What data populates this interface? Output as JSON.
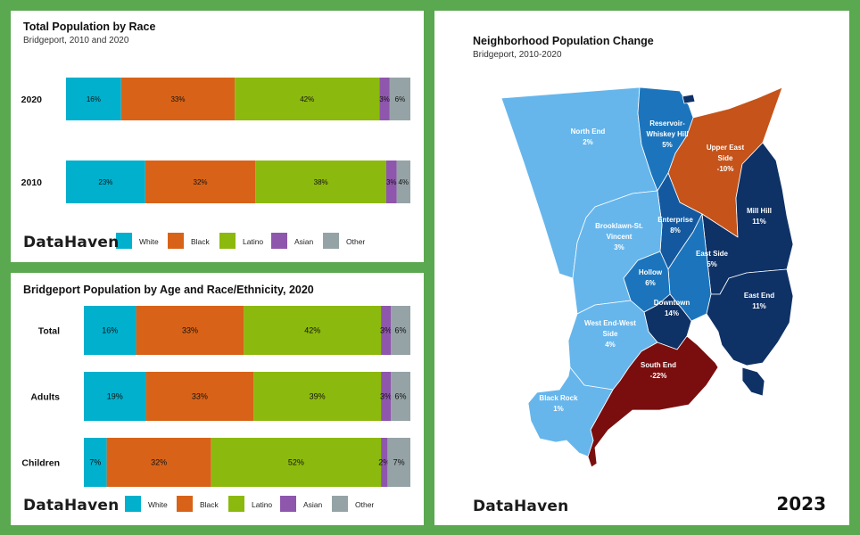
{
  "colors": {
    "background": "#5aa84f",
    "White": "#00b0cd",
    "Black": "#d86318",
    "Latino": "#8cb90e",
    "Asian": "#8e56ad",
    "Other": "#95a3a6"
  },
  "legend": [
    "White",
    "Black",
    "Latino",
    "Asian",
    "Other"
  ],
  "brand": "DataHaven",
  "year": "2023",
  "chart_data": [
    {
      "type": "bar",
      "stacked": "percent",
      "orientation": "horizontal",
      "title": "Total Population by Race",
      "subtitle": "Bridgeport, 2010 and 2020",
      "categories": [
        "2020",
        "2010"
      ],
      "series": [
        {
          "name": "White",
          "values": [
            16,
            23
          ],
          "labels": [
            "16%",
            "23%"
          ]
        },
        {
          "name": "Black",
          "values": [
            33,
            32
          ],
          "labels": [
            "33%",
            "32%"
          ]
        },
        {
          "name": "Latino",
          "values": [
            42,
            38
          ],
          "labels": [
            "42%",
            "38%"
          ]
        },
        {
          "name": "Asian",
          "values": [
            3,
            3
          ],
          "labels": [
            "3%",
            "3%"
          ]
        },
        {
          "name": "Other",
          "values": [
            6,
            4
          ],
          "labels": [
            "6%",
            "4%"
          ]
        }
      ],
      "legend_position": "bottom"
    },
    {
      "type": "bar",
      "stacked": "percent",
      "orientation": "horizontal",
      "title": "Bridgeport Population by Age and Race/Ethnicity, 2020",
      "categories": [
        "Total",
        "Adults",
        "Children"
      ],
      "series": [
        {
          "name": "White",
          "values": [
            16,
            19,
            7
          ],
          "labels": [
            "16%",
            "19%",
            "7%"
          ]
        },
        {
          "name": "Black",
          "values": [
            33,
            33,
            32
          ],
          "labels": [
            "33%",
            "33%",
            "32%"
          ]
        },
        {
          "name": "Latino",
          "values": [
            42,
            39,
            52
          ],
          "labels": [
            "42%",
            "39%",
            "52%"
          ]
        },
        {
          "name": "Asian",
          "values": [
            3,
            3,
            2
          ],
          "labels": [
            "3%",
            "3%",
            "2%"
          ]
        },
        {
          "name": "Other",
          "values": [
            6,
            6,
            7
          ],
          "labels": [
            "6%",
            "6%",
            "7%"
          ]
        }
      ],
      "legend_position": "bottom"
    },
    {
      "type": "choropleth",
      "title": "Neighborhood Population Change",
      "subtitle": "Bridgeport, 2010-2020",
      "regions": [
        {
          "name": "North End",
          "value": 2,
          "label": "2%",
          "color": "#66b6ec"
        },
        {
          "name": "Reservoir-Whiskey Hill",
          "value": 5,
          "label": "5%",
          "color": "#1c75bc"
        },
        {
          "name": "Upper East Side",
          "value": -10,
          "label": "-10%",
          "color": "#c5531a"
        },
        {
          "name": "Mill Hill",
          "value": 11,
          "label": "11%",
          "color": "#0e3166"
        },
        {
          "name": "Enterprise",
          "value": 8,
          "label": "8%",
          "color": "#14599f"
        },
        {
          "name": "Brooklawn-St. Vincent",
          "value": 3,
          "label": "3%",
          "color": "#66b6ec"
        },
        {
          "name": "East Side",
          "value": 5,
          "label": "5%",
          "color": "#1c75bc"
        },
        {
          "name": "Hollow",
          "value": 6,
          "label": "6%",
          "color": "#1c75bc"
        },
        {
          "name": "Downtown",
          "value": 14,
          "label": "14%",
          "color": "#0e3166"
        },
        {
          "name": "East End",
          "value": 11,
          "label": "11%",
          "color": "#0e3166"
        },
        {
          "name": "West End-West Side",
          "value": 4,
          "label": "4%",
          "color": "#66b6ec"
        },
        {
          "name": "South End",
          "value": -22,
          "label": "-22%",
          "color": "#7a0e0e"
        },
        {
          "name": "Black Rock",
          "value": 1,
          "label": "1%",
          "color": "#66b6ec"
        }
      ]
    }
  ]
}
